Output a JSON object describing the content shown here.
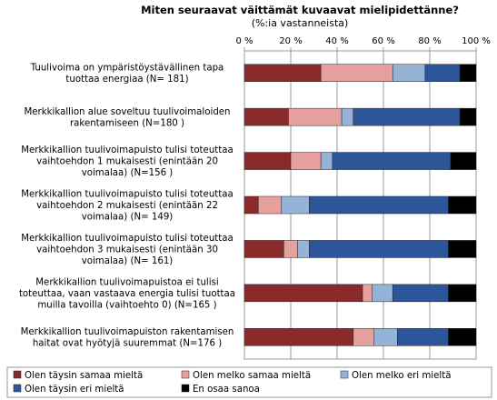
{
  "chart_data": {
    "type": "bar",
    "orientation": "horizontal",
    "stacked": true,
    "title": "Miten seuraavat väittämät kuvaavat mielipidettänne?",
    "subtitle": "(%:ia vastanneista)",
    "xlim": [
      0,
      100
    ],
    "x_ticks": [
      "0 %",
      "20 %",
      "40 %",
      "60 %",
      "80 %",
      "100 %"
    ],
    "grid": true,
    "legend_position": "bottom",
    "categories": [
      [
        "Tuulivoima on ympäristöystävällinen tapa",
        "tuottaa energiaa  (N= 181)"
      ],
      [
        "Merkkikallion alue soveltuu tuulivoimaloiden",
        "rakentamiseen (N=180 )"
      ],
      [
        "Merkkikallion tuulivoimapuisto tulisi toteuttaa",
        "vaihtoehdon 1 mukaisesti (enintään 20",
        "voimalaa) (N=156 )"
      ],
      [
        "Merkkikallion tuulivoimapuisto tulisi toteuttaa",
        "vaihtoehdon 2 mukaisesti (enintään 22",
        "voimalaa) (N= 149)"
      ],
      [
        "Merkkikallion tuulivoimapuisto tulisi toteuttaa",
        "vaihtoehdon 3 mukaisesti (enintään 30",
        "voimalaa) (N= 161)"
      ],
      [
        "Merkkikallion tuulivoimapuistoa ei tulisi",
        "toteuttaa, vaan vastaava energia tulisi tuottaa",
        "muilla tavoilla (vaihtoehto 0) (N=165 )"
      ],
      [
        "Merkkikallion tuulivoimapuiston rakentamisen",
        "haitat ovat hyötyjä suuremmat (N=176 )"
      ]
    ],
    "series": [
      {
        "name": "Olen täysin samaa mieltä",
        "color": "#8B2A2A",
        "values": [
          33,
          19,
          20,
          6,
          17,
          51,
          47
        ]
      },
      {
        "name": "Olen melko samaa mieltä",
        "color": "#E6A09E",
        "values": [
          31,
          23,
          13,
          10,
          6,
          4,
          9
        ]
      },
      {
        "name": "Olen melko eri mieltä",
        "color": "#94B3D7",
        "values": [
          14,
          5,
          5,
          12,
          5,
          9,
          10
        ]
      },
      {
        "name": "Olen täysin eri mieltä",
        "color": "#2C559A",
        "values": [
          15,
          46,
          51,
          60,
          60,
          24,
          22
        ]
      },
      {
        "name": "En osaa sanoa",
        "color": "#000000",
        "values": [
          7,
          7,
          11,
          12,
          12,
          12,
          12
        ]
      }
    ]
  }
}
